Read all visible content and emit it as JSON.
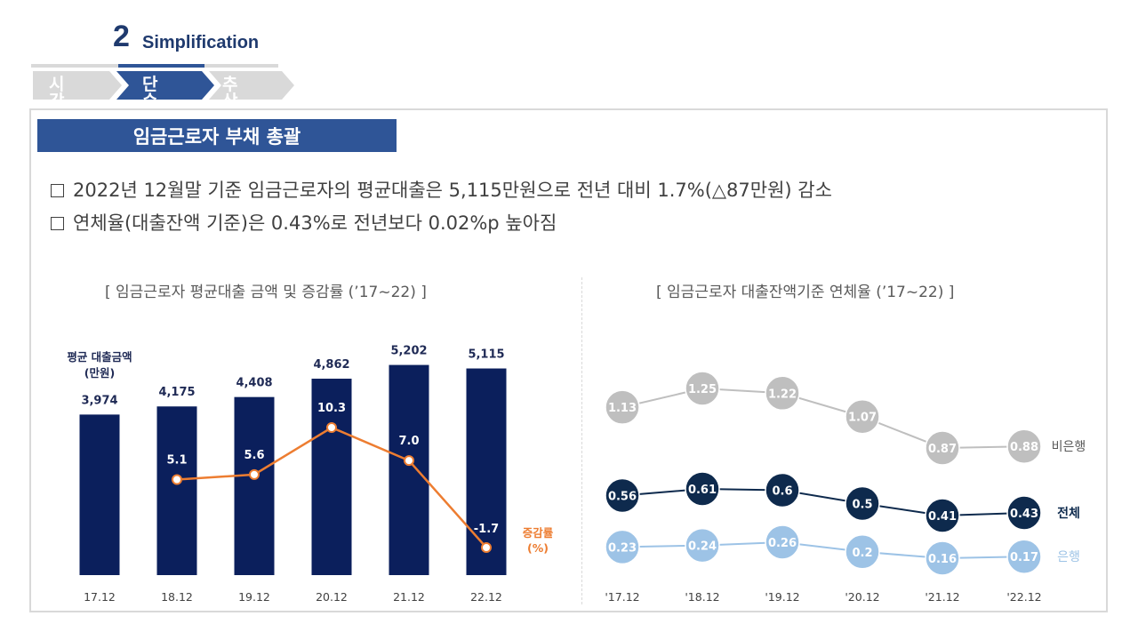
{
  "header": {
    "section_number": "2",
    "section_name": "Simplification",
    "steps": [
      {
        "label": "시각화",
        "active": false
      },
      {
        "label": "단순화",
        "active": true
      },
      {
        "label": "추상화",
        "active": false
      }
    ]
  },
  "title": "임금근로자 부채 총괄",
  "bullets": [
    "2022년 12월말 기준 임금근로자의 평균대출은 5,115만원으로 전년 대비 1.7%(△87만원) 감소",
    "연체율(대출잔액 기준)은 0.43%로 전년보다 0.02%p 높아짐"
  ],
  "colors": {
    "navy": "#0b1f5c",
    "orange": "#ed7d31",
    "title_blue": "#2f5597",
    "grey_step": "#d9d9d9",
    "series_total": "#0e2a4d",
    "series_nonbank": "#bfbfbf",
    "series_bank": "#9dc3e6"
  },
  "chart_data": [
    {
      "type": "bar",
      "title": "[ 임금근로자 평균대출 금액 및 증감률 (’17~22) ]",
      "ylabel": "평균 대출금액\n(만원)",
      "categories": [
        "17.12",
        "18.12",
        "19.12",
        "20.12",
        "21.12",
        "22.12"
      ],
      "values": [
        3974,
        4175,
        4408,
        4862,
        5202,
        5115
      ],
      "value_labels": [
        "3,974",
        "4,175",
        "4,408",
        "4,862",
        "5,202",
        "5,115"
      ],
      "ylim": [
        0,
        5500
      ],
      "line_series": {
        "name": "증감률\n(%)",
        "values": [
          null,
          5.1,
          5.6,
          10.3,
          7.0,
          -1.7
        ],
        "labels": [
          "",
          "5.1",
          "5.6",
          "10.3",
          "7.0",
          "-1.7"
        ],
        "ylim": [
          -3,
          16
        ]
      }
    },
    {
      "type": "line",
      "title": "[ 임금근로자 대출잔액기준 연체율 (’17~22) ]",
      "categories": [
        "'17.12",
        "'18.12",
        "'19.12",
        "'20.12",
        "'21.12",
        "'22.12"
      ],
      "series": [
        {
          "name": "비은행",
          "values": [
            1.13,
            1.25,
            1.22,
            1.07,
            0.87,
            0.88
          ],
          "labels": [
            "1.13",
            "1.25",
            "1.22",
            "1.07",
            "0.87",
            "0.88"
          ]
        },
        {
          "name": "전체",
          "values": [
            0.56,
            0.61,
            0.6,
            0.5,
            0.41,
            0.43
          ],
          "labels": [
            "0.56",
            "0.61",
            "0.6",
            "0.5",
            "0.41",
            "0.43"
          ]
        },
        {
          "name": "은행",
          "values": [
            0.23,
            0.24,
            0.26,
            0.2,
            0.16,
            0.17
          ],
          "labels": [
            "0.23",
            "0.24",
            "0.26",
            "0.2",
            "0.16",
            "0.17"
          ]
        }
      ]
    }
  ]
}
